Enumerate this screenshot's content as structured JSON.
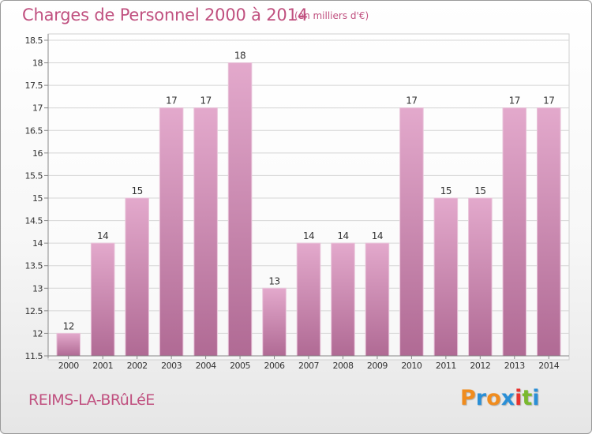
{
  "header": {
    "title": "Charges de Personnel 2000 à 2014",
    "subtitle": "(en milliers d'€)"
  },
  "footer": {
    "commune": "REIMS-LA-BRûLéE",
    "brand": "Proxiti"
  },
  "colors": {
    "accent": "#c0507f",
    "bar_top": "#e3a9cc",
    "bar_bottom": "#b06a94",
    "brand_letters": [
      "#f08c1e",
      "#2a8fd6",
      "#f08c1e",
      "#2a8fd6",
      "#e8322e",
      "#7ab92e",
      "#2a8fd6"
    ]
  },
  "chart_data": {
    "type": "bar",
    "categories": [
      "2000",
      "2001",
      "2002",
      "2003",
      "2004",
      "2005",
      "2006",
      "2007",
      "2008",
      "2009",
      "2010",
      "2011",
      "2012",
      "2013",
      "2014"
    ],
    "values": [
      12,
      14,
      15,
      17,
      17,
      18,
      13,
      14,
      14,
      14,
      17,
      15,
      15,
      17,
      17
    ],
    "data_labels": [
      "12",
      "14",
      "15",
      "17",
      "17",
      "18",
      "13",
      "14",
      "14",
      "14",
      "17",
      "15",
      "15",
      "17",
      "17"
    ],
    "yticks": [
      11.5,
      12,
      12.5,
      13,
      13.5,
      14,
      14.5,
      15,
      15.5,
      16,
      16.5,
      17,
      17.5,
      18,
      18.5
    ],
    "ytick_labels": [
      "11.5",
      "12",
      "12.5",
      "13",
      "13.5",
      "14",
      "14.5",
      "15",
      "15.5",
      "16",
      "16.5",
      "17",
      "17.5",
      "18",
      "18.5"
    ],
    "ylim": [
      11.5,
      18.5
    ],
    "grid": "horizontal",
    "legend": "none",
    "xlabel": "",
    "ylabel": ""
  }
}
